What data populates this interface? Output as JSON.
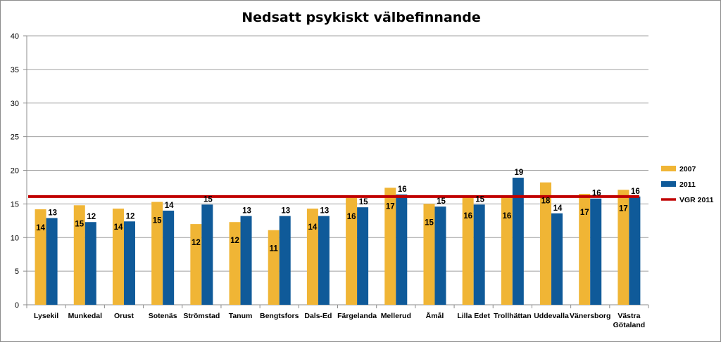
{
  "chart_data": {
    "type": "bar",
    "title": "Nedsatt psykiskt välbefinnande",
    "categories": [
      "Lysekil",
      "Munkedal",
      "Orust",
      "Sotenäs",
      "Strömstad",
      "Tanum",
      "Bengtsfors",
      "Dals-Ed",
      "Färgelanda",
      "Mellerud",
      "Åmål",
      "Lilla Edet",
      "Trollhättan",
      "Uddevalla",
      "Vänersborg",
      "Västra Götaland"
    ],
    "series": [
      {
        "name": "2007",
        "color": "#f0b535",
        "values": [
          14.2,
          14.8,
          14.3,
          15.3,
          12.0,
          12.3,
          11.1,
          14.3,
          15.9,
          17.4,
          15.0,
          16.0,
          16.0,
          18.2,
          16.5,
          17.1
        ],
        "labels": [
          "14",
          "15",
          "14",
          "15",
          "12",
          "12",
          "11",
          "14",
          "16",
          "17",
          "15",
          "16",
          "16",
          "18",
          "17",
          "17"
        ]
      },
      {
        "name": "2011",
        "color": "#0f5a99",
        "values": [
          12.9,
          12.3,
          12.4,
          14.0,
          14.9,
          13.2,
          13.2,
          13.2,
          14.5,
          16.4,
          14.6,
          14.9,
          18.9,
          13.6,
          15.8,
          16.1
        ],
        "labels": [
          "13",
          "12",
          "12",
          "14",
          "15",
          "13",
          "13",
          "13",
          "15",
          "16",
          "15",
          "15",
          "19",
          "14",
          "16",
          "16"
        ]
      }
    ],
    "reference_line": {
      "name": "VGR 2011",
      "value": 16.1,
      "color": "#c00000"
    },
    "ylim": [
      0,
      40
    ],
    "yticks": [
      "0",
      "5",
      "10",
      "15",
      "20",
      "25",
      "30",
      "35",
      "40"
    ],
    "grid": true,
    "legend_position": "right"
  }
}
